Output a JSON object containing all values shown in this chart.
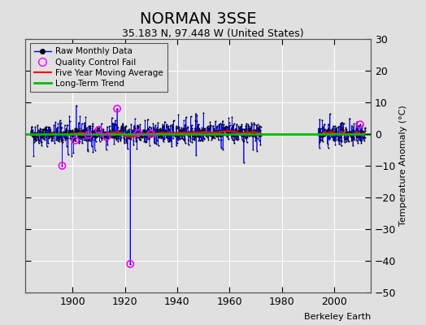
{
  "title": "NORMAN 3SSE",
  "subtitle": "35.183 N, 97.448 W (United States)",
  "ylabel": "Temperature Anomaly (°C)",
  "credit": "Berkeley Earth",
  "ylim": [
    -50,
    30
  ],
  "yticks": [
    -50,
    -40,
    -30,
    -20,
    -10,
    0,
    10,
    20,
    30
  ],
  "xlim": [
    1882,
    2014
  ],
  "xticks": [
    1900,
    1920,
    1940,
    1960,
    1980,
    2000
  ],
  "raw_line_color": "#0000ff",
  "dot_color": "#000000",
  "qc_color": "#ff00ff",
  "moving_avg_color": "#ff0000",
  "trend_color": "#00bb00",
  "background_color": "#e0e0e0",
  "plot_bg_color": "#e0e0e0",
  "grid_color": "#ffffff",
  "title_fontsize": 14,
  "subtitle_fontsize": 9,
  "seed": 42,
  "gap_start": 1973,
  "gap_end": 1993,
  "outlier1_year": 1896,
  "outlier1_val": -10,
  "outlier2_year": 1922,
  "outlier2_val": -41,
  "outlier3_year": 1917,
  "outlier3_val": 8
}
